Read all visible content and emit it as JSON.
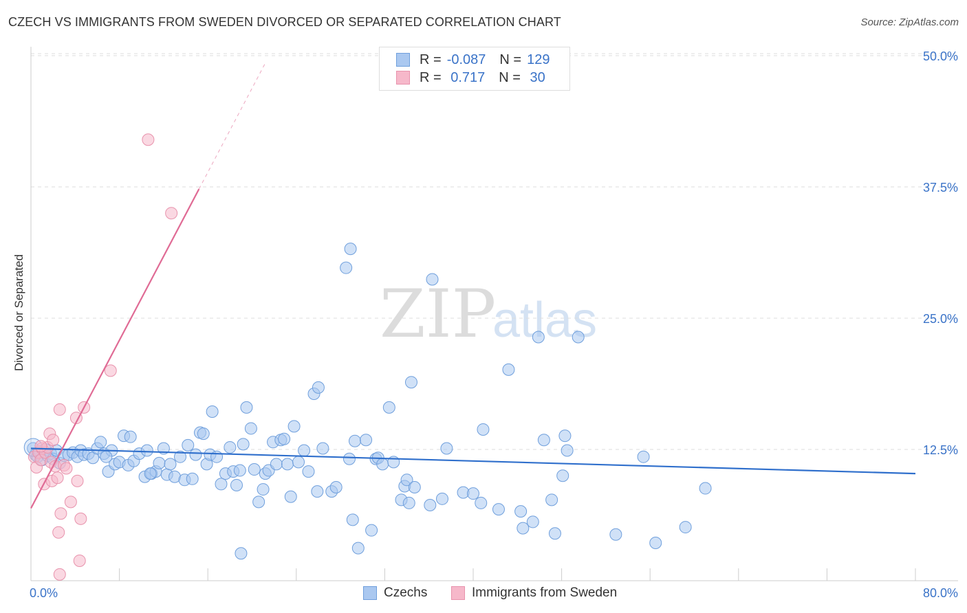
{
  "header": {
    "title": "CZECH VS IMMIGRANTS FROM SWEDEN DIVORCED OR SEPARATED CORRELATION CHART",
    "source": "Source: ZipAtlas.com"
  },
  "watermark": {
    "zip": "ZIP",
    "atlas": "atlas"
  },
  "legend": {
    "rows": [
      {
        "r_label": "R =",
        "r_value": "-0.087",
        "n_label": "N =",
        "n_value": "129"
      },
      {
        "r_label": "R =",
        "r_value": " 0.717",
        "n_label": "N =",
        "n_value": " 30"
      }
    ]
  },
  "bottom_legend": {
    "czechs": "Czechs",
    "sweden": "Immigrants from Sweden"
  },
  "colors": {
    "blue_fill": "#aac8f0",
    "blue_stroke": "#6f9fdc",
    "blue_line": "#2f6fcc",
    "pink_fill": "#f6b8ca",
    "pink_stroke": "#e892ac",
    "pink_line": "#e06b95",
    "axis_text": "#3a73c8",
    "grid": "#dddddd"
  },
  "chart_data": {
    "type": "scatter",
    "title": "CZECH VS IMMIGRANTS FROM SWEDEN DIVORCED OR SEPARATED CORRELATION CHART",
    "xlabel": "",
    "ylabel": "Divorced or Separated",
    "xlim": [
      0,
      80
    ],
    "ylim": [
      0,
      52
    ],
    "x_tick_labels": [
      "0.0%",
      "80.0%"
    ],
    "y_ticks": [
      12.5,
      25.0,
      37.5,
      50.0
    ],
    "y_tick_labels": [
      "12.5%",
      "25.0%",
      "37.5%",
      "50.0%"
    ],
    "grid": "horizontal dashed",
    "legend_position": "top-center",
    "series": [
      {
        "name": "Czechs",
        "R": -0.087,
        "N": 129,
        "trend": {
          "x": [
            0,
            80
          ],
          "y": [
            12.6,
            10.2
          ]
        },
        "points": [
          [
            0.2,
            12.6
          ],
          [
            0.4,
            12.0
          ],
          [
            0.6,
            11.8
          ],
          [
            0.8,
            12.3
          ],
          [
            1.0,
            11.5
          ],
          [
            1.3,
            12.5
          ],
          [
            1.5,
            11.9
          ],
          [
            1.8,
            12.1
          ],
          [
            2.0,
            11.6
          ],
          [
            2.3,
            12.4
          ],
          [
            2.6,
            11.2
          ],
          [
            3.0,
            11.9
          ],
          [
            3.4,
            12.0
          ],
          [
            3.8,
            12.2
          ],
          [
            4.2,
            11.8
          ],
          [
            4.5,
            12.4
          ],
          [
            4.8,
            12.0
          ],
          [
            5.2,
            12.1
          ],
          [
            5.6,
            11.7
          ],
          [
            6.0,
            12.6
          ],
          [
            6.3,
            13.2
          ],
          [
            6.6,
            12.1
          ],
          [
            7.0,
            10.4
          ],
          [
            7.3,
            12.4
          ],
          [
            7.6,
            11.1
          ],
          [
            8.0,
            11.3
          ],
          [
            8.4,
            13.8
          ],
          [
            8.8,
            11.0
          ],
          [
            9.0,
            13.7
          ],
          [
            9.3,
            11.4
          ],
          [
            9.8,
            12.1
          ],
          [
            10.3,
            9.9
          ],
          [
            10.5,
            12.4
          ],
          [
            10.9,
            10.2
          ],
          [
            11.3,
            10.4
          ],
          [
            11.6,
            11.2
          ],
          [
            12.0,
            12.6
          ],
          [
            12.3,
            10.1
          ],
          [
            12.6,
            11.1
          ],
          [
            13.0,
            9.9
          ],
          [
            13.5,
            11.8
          ],
          [
            13.9,
            9.6
          ],
          [
            14.2,
            12.9
          ],
          [
            14.6,
            9.7
          ],
          [
            14.9,
            12.0
          ],
          [
            15.3,
            14.1
          ],
          [
            15.6,
            14.0
          ],
          [
            15.9,
            11.1
          ],
          [
            16.2,
            12.0
          ],
          [
            16.4,
            16.1
          ],
          [
            16.8,
            11.8
          ],
          [
            17.2,
            9.2
          ],
          [
            17.6,
            10.2
          ],
          [
            18.0,
            12.7
          ],
          [
            18.3,
            10.4
          ],
          [
            18.6,
            9.1
          ],
          [
            18.9,
            10.5
          ],
          [
            19.2,
            13.0
          ],
          [
            19.5,
            16.5
          ],
          [
            19.9,
            14.5
          ],
          [
            20.2,
            10.6
          ],
          [
            20.6,
            7.5
          ],
          [
            21.0,
            8.7
          ],
          [
            21.2,
            10.2
          ],
          [
            21.5,
            10.5
          ],
          [
            21.9,
            13.2
          ],
          [
            22.2,
            11.1
          ],
          [
            22.6,
            13.4
          ],
          [
            22.9,
            13.5
          ],
          [
            23.2,
            11.1
          ],
          [
            23.5,
            8.0
          ],
          [
            23.8,
            14.7
          ],
          [
            24.2,
            11.3
          ],
          [
            24.7,
            12.4
          ],
          [
            25.1,
            10.4
          ],
          [
            25.6,
            17.8
          ],
          [
            25.9,
            8.5
          ],
          [
            26.0,
            18.4
          ],
          [
            26.4,
            12.6
          ],
          [
            27.2,
            8.5
          ],
          [
            27.6,
            8.9
          ],
          [
            28.5,
            29.8
          ],
          [
            28.8,
            11.6
          ],
          [
            28.9,
            31.6
          ],
          [
            29.1,
            5.8
          ],
          [
            29.3,
            13.3
          ],
          [
            29.6,
            3.1
          ],
          [
            30.3,
            13.4
          ],
          [
            30.8,
            4.8
          ],
          [
            31.2,
            11.6
          ],
          [
            31.4,
            11.7
          ],
          [
            31.8,
            11.1
          ],
          [
            32.4,
            16.5
          ],
          [
            32.8,
            11.3
          ],
          [
            33.5,
            7.7
          ],
          [
            33.8,
            9.0
          ],
          [
            34.0,
            9.6
          ],
          [
            34.2,
            7.4
          ],
          [
            34.4,
            18.9
          ],
          [
            34.7,
            8.9
          ],
          [
            36.1,
            7.2
          ],
          [
            36.3,
            28.7
          ],
          [
            37.2,
            7.8
          ],
          [
            37.6,
            12.6
          ],
          [
            39.1,
            8.4
          ],
          [
            40.0,
            8.3
          ],
          [
            40.7,
            7.4
          ],
          [
            40.9,
            14.4
          ],
          [
            42.3,
            6.8
          ],
          [
            43.2,
            20.1
          ],
          [
            44.3,
            6.6
          ],
          [
            44.5,
            5.0
          ],
          [
            45.4,
            5.6
          ],
          [
            45.9,
            23.2
          ],
          [
            46.4,
            13.4
          ],
          [
            47.1,
            7.7
          ],
          [
            47.4,
            4.5
          ],
          [
            48.1,
            10.0
          ],
          [
            48.3,
            13.8
          ],
          [
            48.5,
            12.4
          ],
          [
            49.5,
            23.2
          ],
          [
            52.9,
            4.4
          ],
          [
            55.4,
            11.8
          ],
          [
            56.5,
            3.6
          ],
          [
            59.2,
            5.1
          ],
          [
            61.0,
            8.8
          ],
          [
            19.0,
            2.6
          ],
          [
            10.8,
            10.2
          ],
          [
            6.8,
            11.8
          ]
        ]
      },
      {
        "name": "Immigrants from Sweden",
        "R": 0.717,
        "N": 30,
        "trend": {
          "x": [
            0,
            15.2
          ],
          "y": [
            6.9,
            37.3
          ]
        },
        "trend_dashed": {
          "x": [
            15.2,
            21.2
          ],
          "y": [
            37.3,
            49.3
          ]
        },
        "points": [
          [
            0.3,
            11.8
          ],
          [
            0.5,
            10.8
          ],
          [
            0.7,
            12.2
          ],
          [
            0.9,
            11.5
          ],
          [
            1.0,
            12.6
          ],
          [
            1.2,
            9.2
          ],
          [
            1.3,
            12.2
          ],
          [
            1.5,
            12.7
          ],
          [
            1.7,
            14.0
          ],
          [
            1.8,
            11.3
          ],
          [
            1.9,
            9.5
          ],
          [
            2.0,
            13.4
          ],
          [
            2.2,
            10.9
          ],
          [
            2.4,
            9.8
          ],
          [
            2.5,
            4.6
          ],
          [
            2.6,
            16.3
          ],
          [
            2.7,
            6.4
          ],
          [
            3.0,
            11.0
          ],
          [
            3.2,
            10.7
          ],
          [
            3.6,
            7.5
          ],
          [
            4.1,
            15.5
          ],
          [
            4.2,
            9.5
          ],
          [
            4.4,
            1.9
          ],
          [
            4.5,
            5.9
          ],
          [
            4.8,
            16.5
          ],
          [
            7.2,
            20.0
          ],
          [
            10.6,
            42.0
          ],
          [
            12.7,
            35.0
          ],
          [
            2.6,
            0.6
          ],
          [
            0.9,
            12.8
          ]
        ]
      }
    ]
  }
}
